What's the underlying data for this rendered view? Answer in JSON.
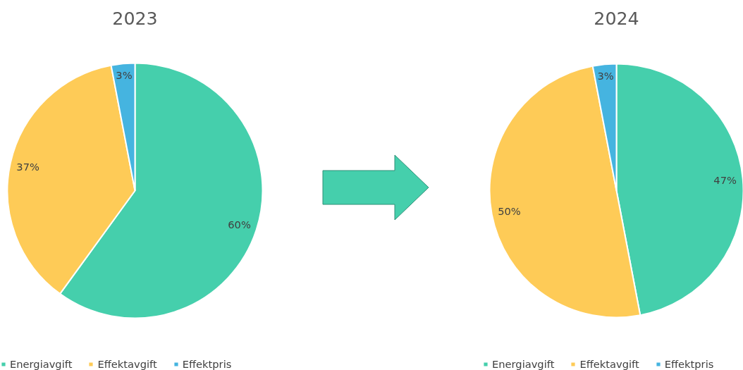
{
  "chart_data": [
    {
      "type": "pie",
      "title": "2023",
      "categories": [
        "Energiavgift",
        "Effektavgift",
        "Effektpris"
      ],
      "values": [
        60,
        37,
        3
      ],
      "colors": [
        "#45cfac",
        "#fecb57",
        "#45b4e0"
      ],
      "value_labels": [
        "60%",
        "37%",
        "3%"
      ],
      "legend": "bottom"
    },
    {
      "type": "pie",
      "title": "2024",
      "categories": [
        "Energiavgift",
        "Effektavgift",
        "Effektpris"
      ],
      "values": [
        47,
        50,
        3
      ],
      "colors": [
        "#45cfac",
        "#fecb57",
        "#45b4e0"
      ],
      "value_labels": [
        "47%",
        "50%",
        "3%"
      ],
      "legend": "bottom"
    }
  ]
}
